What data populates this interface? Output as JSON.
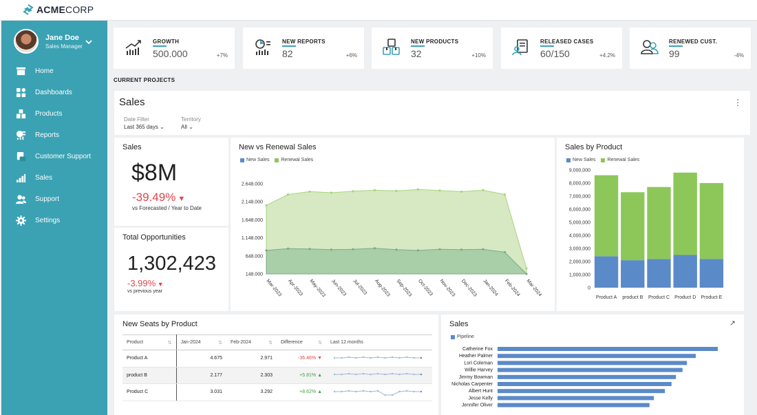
{
  "brand": {
    "bold": "ACME",
    "light": "CORP"
  },
  "profile": {
    "name": "Jane Doe",
    "role": "Sales Manager"
  },
  "nav": [
    {
      "label": "Home",
      "icon": "home-icon"
    },
    {
      "label": "Dashboards",
      "icon": "dashboards-icon"
    },
    {
      "label": "Products",
      "icon": "products-icon"
    },
    {
      "label": "Reports",
      "icon": "reports-icon"
    },
    {
      "label": "Customer Support",
      "icon": "customer-support-icon"
    },
    {
      "label": "Sales",
      "icon": "sales-icon"
    },
    {
      "label": "Support",
      "icon": "support-icon"
    },
    {
      "label": "Settings",
      "icon": "settings-icon"
    }
  ],
  "kpis": [
    {
      "title": "GROWTH",
      "value": "500.000",
      "delta": "+7%"
    },
    {
      "title": "NEW REPORTS",
      "value": "82",
      "delta": "+6%"
    },
    {
      "title": "NEW PRODUCTS",
      "value": "32",
      "delta": "+10%"
    },
    {
      "title": "RELEASED CASES",
      "value": "60/150",
      "delta": "+4.2%"
    },
    {
      "title": "RENEWED CUST.",
      "value": "99",
      "delta": "-4%"
    }
  ],
  "section_title": "CURRENT PROJECTS",
  "sales_header": {
    "title": "Sales",
    "filters": [
      {
        "label": "Date Filter",
        "value": "Last 365 days"
      },
      {
        "label": "Territory",
        "value": "All"
      }
    ]
  },
  "sales_card": {
    "title": "Sales",
    "value": "$8M",
    "change": "-39.49%",
    "caption": "vs Forecasted / Year to Date"
  },
  "opps_card": {
    "title": "Total Opportunities",
    "value": "1,302,423",
    "change": "-3.99%",
    "caption": "vs previous year"
  },
  "colors": {
    "accent": "#3aa2b3",
    "new": "#5b8ac9",
    "renewal": "#8dc75a",
    "negative": "#e0474c",
    "positive": "#43a047"
  },
  "chart_data": [
    {
      "type": "area",
      "title": "New vs Renewal Sales",
      "x": [
        "Mar-2023",
        "Apr-2023",
        "May-2023",
        "Jun-2023",
        "Jul-2023",
        "Aug-2023",
        "Sep-2023",
        "Oct-2023",
        "Nov-2023",
        "Dec-2023",
        "Jan-2024",
        "Feb-2024",
        "Mar-2024"
      ],
      "yticks": [
        "148.000",
        "648.000",
        "1.148.000",
        "1.648.000",
        "2.148.000",
        "2.648.000"
      ],
      "ylim": [
        148000,
        2648000
      ],
      "series": [
        {
          "name": "New Sales",
          "values": [
            800000,
            850000,
            840000,
            820000,
            830000,
            860000,
            820000,
            800000,
            830000,
            820000,
            830000,
            750000,
            148000
          ]
        },
        {
          "name": "Renewal Sales",
          "values": [
            2050000,
            2350000,
            2430000,
            2400000,
            2440000,
            2470000,
            2450000,
            2490000,
            2460000,
            2430000,
            2470000,
            2350000,
            300000
          ]
        }
      ]
    },
    {
      "type": "bar",
      "title": "Sales by Product",
      "categories": [
        "Product A",
        "product B",
        "Product C",
        "Product D",
        "Product E"
      ],
      "yticks": [
        "0",
        "1,000,000",
        "2,000,000",
        "3,000,000",
        "4,000,000",
        "5,000,000",
        "6,000,000",
        "7,000,000",
        "8,000,000",
        "9,000,000"
      ],
      "ylim": [
        0,
        9000000
      ],
      "series": [
        {
          "name": "New Sales",
          "values": [
            2400000,
            2100000,
            2200000,
            2500000,
            2200000
          ]
        },
        {
          "name": "Renewal Sales",
          "values": [
            6200000,
            5200000,
            5500000,
            6300000,
            5800000
          ]
        }
      ]
    },
    {
      "type": "bar",
      "title": "Sales",
      "orientation": "horizontal",
      "categories": [
        "Catherine Fox",
        "Heather Palmer",
        "Lori Coleman",
        "Willie Harvey",
        "Jimmy Bowman",
        "Nicholas Carpenter",
        "Albert Hunt",
        "Jesse Kelly",
        "Jennifer Oliver"
      ],
      "series": [
        {
          "name": "Pipeline",
          "values": [
            100,
            90,
            86,
            84,
            81,
            79,
            76,
            71,
            69
          ]
        }
      ]
    }
  ],
  "seats": {
    "title": "New Seats by Product",
    "columns": [
      "Product",
      "Jan-2024",
      "Feb-2024",
      "Difference",
      "Last 12 months"
    ],
    "rows": [
      {
        "product": "Product A",
        "jan": "4.675",
        "feb": "2.971",
        "diff": "-36.46%",
        "dir": "down"
      },
      {
        "product": "product B",
        "jan": "2.177",
        "feb": "2.303",
        "diff": "+5.81%",
        "dir": "up"
      },
      {
        "product": "Product C",
        "jan": "3.031",
        "feb": "3.292",
        "diff": "+8.62%",
        "dir": "up"
      }
    ]
  }
}
